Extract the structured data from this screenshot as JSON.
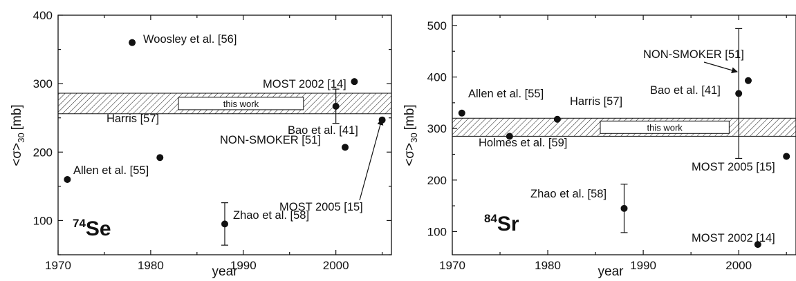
{
  "chart_data": [
    {
      "type": "scatter",
      "isotope": {
        "mass": "74",
        "symbol": "Se"
      },
      "xlabel": "year",
      "ylabel": {
        "main": "<σ>",
        "sub": "30",
        "unit": "[mb]"
      },
      "xlim": [
        1970,
        2006
      ],
      "ylim": [
        50,
        400
      ],
      "xticks": [
        1970,
        1980,
        1990,
        2000
      ],
      "yticks": [
        100,
        200,
        300,
        400
      ],
      "band": {
        "label": "this work",
        "low": 256,
        "high": 286
      },
      "points": [
        {
          "x": 1971,
          "y": 160,
          "label": "Allen et al. [55]"
        },
        {
          "x": 1978,
          "y": 360,
          "label": "Woosley et al. [56]"
        },
        {
          "x": 1981,
          "y": 192,
          "label": "Harris [57]"
        },
        {
          "x": 1988,
          "y": 95,
          "err": 31,
          "label": "Zhao et al. [58]"
        },
        {
          "x": 2000,
          "y": 267,
          "err": 25,
          "label": "Bao et al. [41]"
        },
        {
          "x": 2001,
          "y": 207,
          "label": "NON-SMOKER [51]"
        },
        {
          "x": 2002,
          "y": 303,
          "label": "MOST 2002 [14]"
        },
        {
          "x": 2005,
          "y": 247,
          "label": "MOST 2005 [15]"
        }
      ]
    },
    {
      "type": "scatter",
      "isotope": {
        "mass": "84",
        "symbol": "Sr"
      },
      "xlabel": "year",
      "ylabel": {
        "main": "<σ>",
        "sub": "30",
        "unit": "[mb]"
      },
      "xlim": [
        1970,
        2006
      ],
      "ylim": [
        55,
        520
      ],
      "xticks": [
        1970,
        1980,
        1990,
        2000
      ],
      "yticks": [
        100,
        200,
        300,
        400,
        500
      ],
      "band": {
        "label": "this work",
        "low": 285,
        "high": 320
      },
      "points": [
        {
          "x": 1971,
          "y": 330,
          "label": "Allen et al. [55]"
        },
        {
          "x": 1976,
          "y": 285,
          "label": "Holmes et al. [59]"
        },
        {
          "x": 1981,
          "y": 318,
          "label": "Harris [57]"
        },
        {
          "x": 1988,
          "y": 145,
          "err": 47,
          "label": "Zhao et al. [58]"
        },
        {
          "x": 2000,
          "y": 368,
          "err": 126,
          "label": "Bao et al. [41]"
        },
        {
          "x": 2001,
          "y": 393,
          "label": "NON-SMOKER [51]"
        },
        {
          "x": 2002,
          "y": 75,
          "label": "MOST 2002 [14]"
        },
        {
          "x": 2005,
          "y": 246,
          "label": "MOST 2005 [15]"
        }
      ]
    }
  ]
}
